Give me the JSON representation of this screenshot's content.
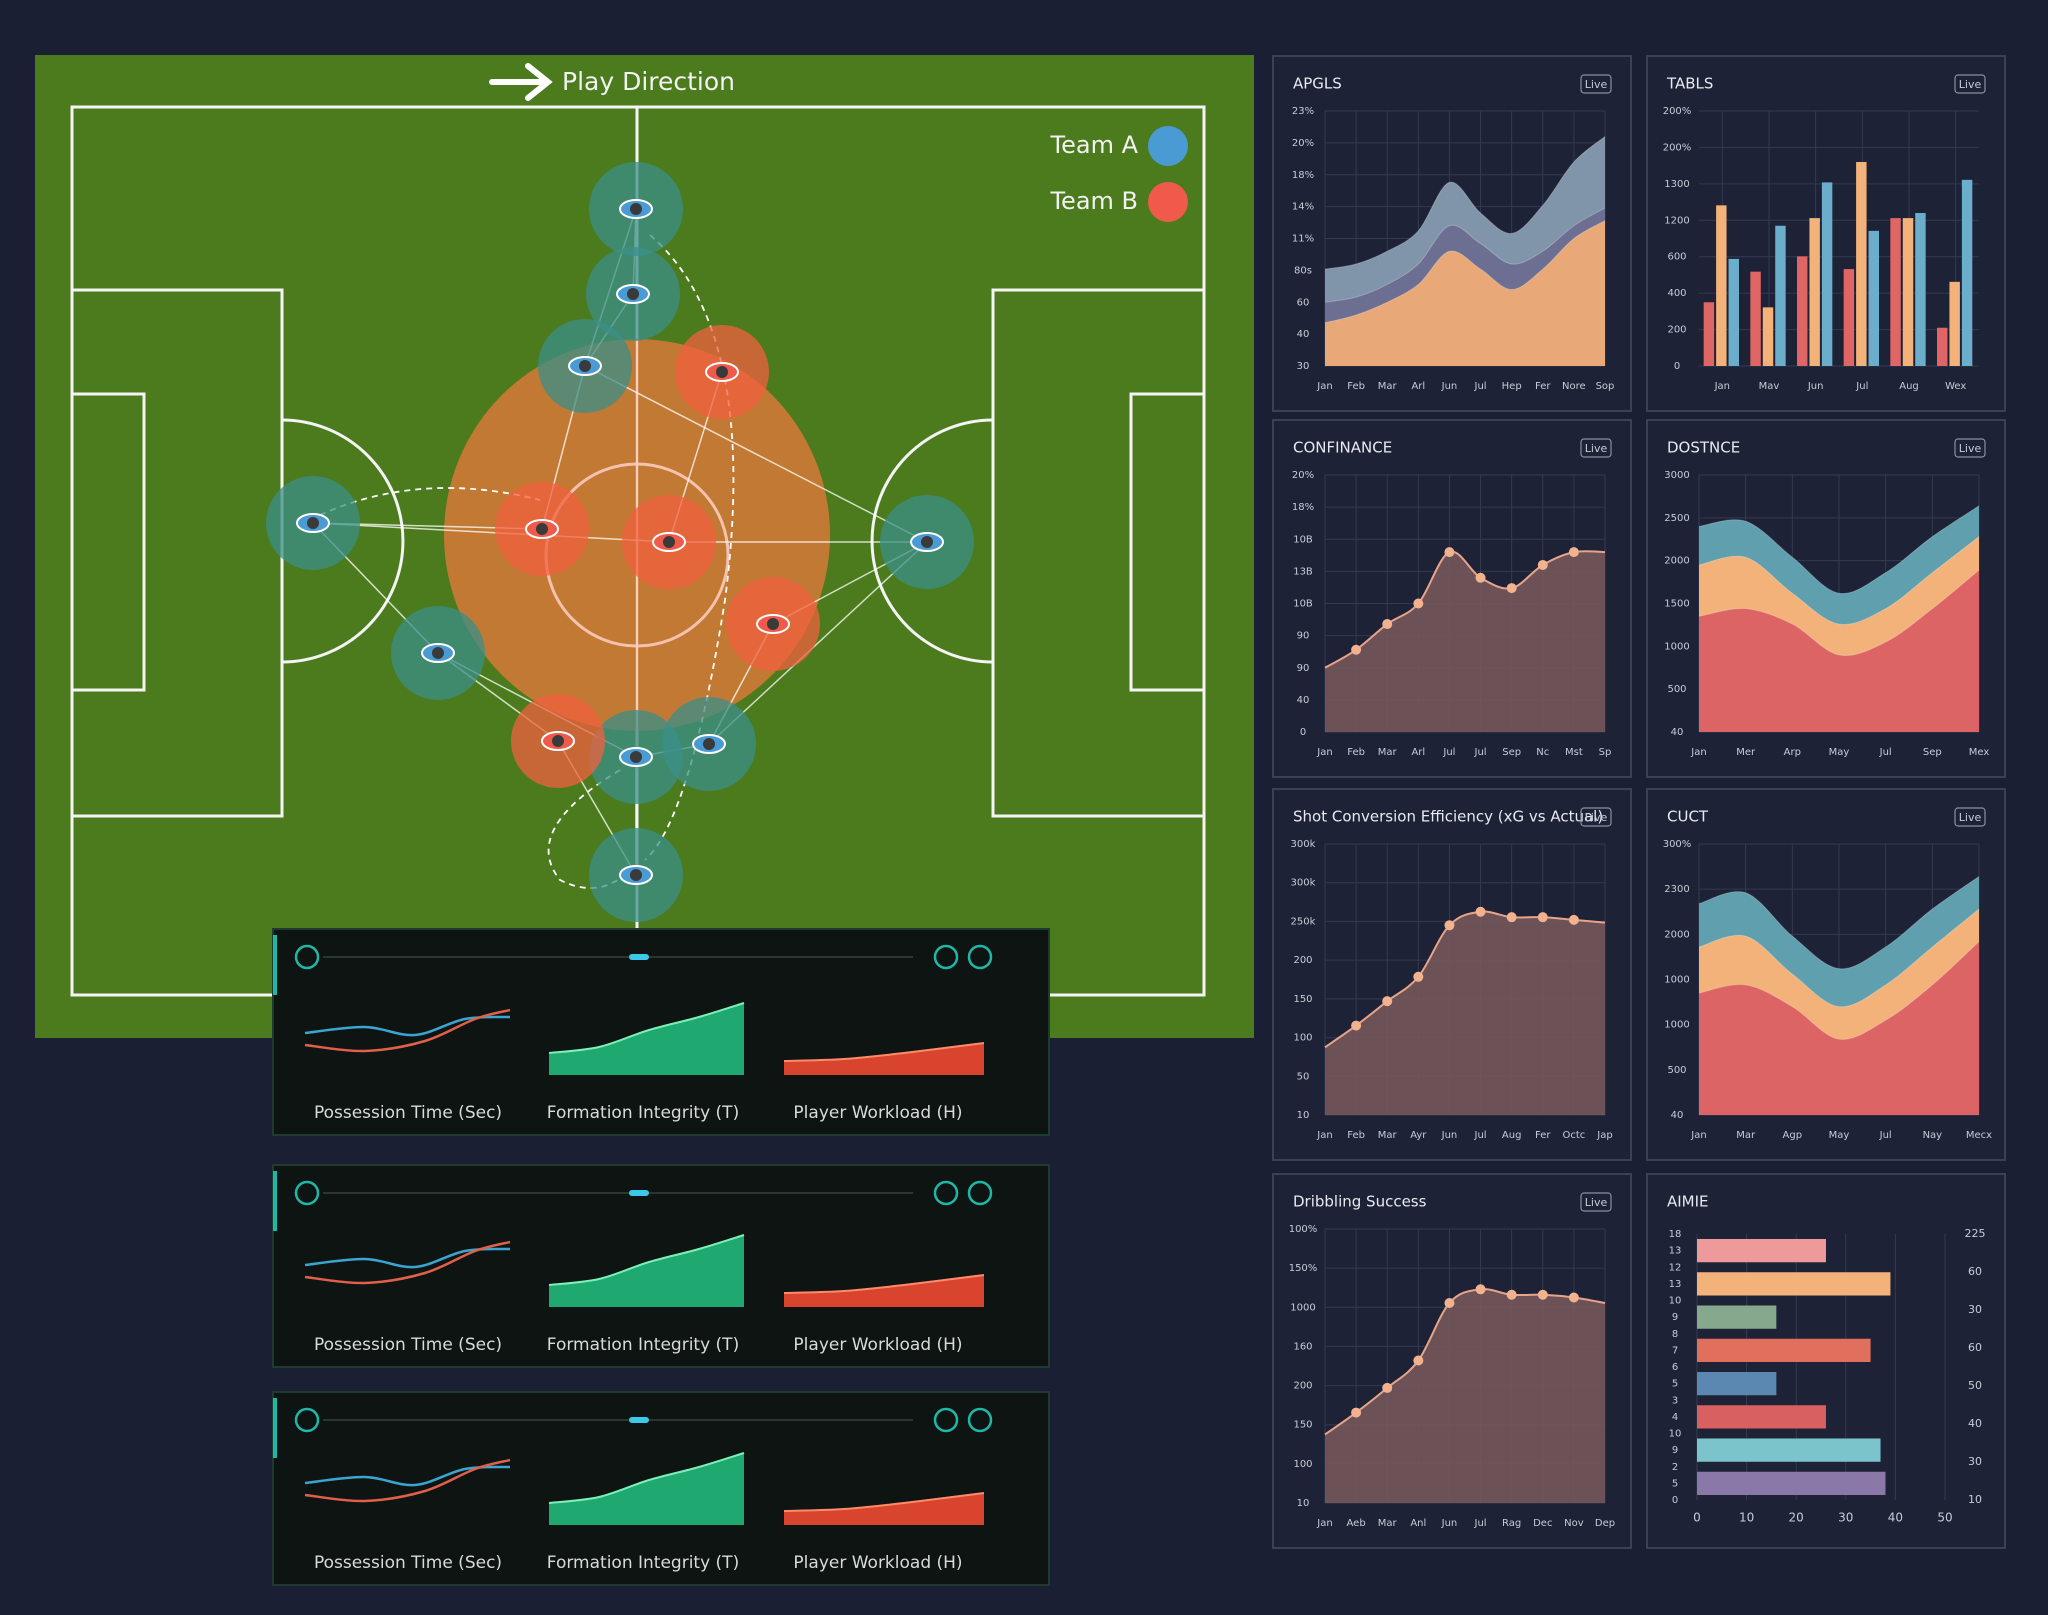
{
  "pitch": {
    "direction": "Play Direction",
    "teams": [
      {
        "name": "Team A",
        "color": "#4a9ad4"
      },
      {
        "name": "Team B",
        "color": "#f05a4a"
      }
    ]
  },
  "strips": [
    {
      "labels": [
        "Possession Time (Sec)",
        "Formation Integrity (T)",
        "Player Workload (H)"
      ]
    },
    {
      "labels": [
        "Possession Time (Sec)",
        "Formation Integrity (T)",
        "Player Workload (H)"
      ]
    },
    {
      "labels": [
        "Possession Time (Sec)",
        "Formation Integrity (T)",
        "Player Workload (H)"
      ]
    }
  ],
  "panels": [
    {
      "type": "area",
      "title": "APGLS",
      "badge": "Live",
      "categories": [
        "Jan",
        "Feb",
        "Mar",
        "Arl",
        "Jun",
        "Jul",
        "Hep",
        "Fer",
        "Nore",
        "Sop"
      ],
      "ylim": [
        0,
        100
      ],
      "ylabels": [
        "30",
        "40",
        "60",
        "80s",
        "11%",
        "14%",
        "18%",
        "20%",
        "23%"
      ],
      "series": [
        {
          "color": "#8095aa",
          "values": [
            38,
            40,
            45,
            53,
            72,
            60,
            52,
            63,
            80,
            90
          ]
        },
        {
          "color": "#6c6f91",
          "values": [
            25,
            27,
            32,
            40,
            55,
            48,
            40,
            45,
            55,
            62
          ]
        },
        {
          "color": "#e8a877",
          "values": [
            17,
            20,
            25,
            32,
            45,
            38,
            30,
            38,
            50,
            57
          ]
        }
      ]
    },
    {
      "type": "bar",
      "title": "TABLS",
      "badge": "Live",
      "categories": [
        "Jan",
        "Mav",
        "Jun",
        "Jul",
        "Aug",
        "Wex"
      ],
      "ylim": [
        0,
        100
      ],
      "ylabels": [
        "0",
        "200",
        "400",
        "600",
        "1200",
        "1300",
        "200%",
        "200%"
      ],
      "series": [
        {
          "color": "#e06565",
          "values": [
            25,
            37,
            43,
            38,
            58,
            15
          ]
        },
        {
          "color": "#f2b27a",
          "values": [
            63,
            23,
            58,
            80,
            58,
            33
          ]
        },
        {
          "color": "#6aaecb",
          "values": [
            42,
            55,
            72,
            53,
            60,
            73
          ]
        }
      ]
    },
    {
      "type": "line",
      "title": "CONFINANCE",
      "badge": "Live",
      "categories": [
        "Jan",
        "Feb",
        "Mar",
        "Arl",
        "Jul",
        "Jul",
        "Sep",
        "Nc",
        "Mst",
        "Sp"
      ],
      "ylim": [
        0,
        100
      ],
      "ylabels": [
        "0",
        "40",
        "90",
        "90",
        "10B",
        "13B",
        "10B",
        "18%",
        "20%"
      ],
      "series": [
        {
          "color": "#e8a48a",
          "values": [
            25,
            32,
            42,
            50,
            70,
            60,
            56,
            65,
            70,
            70
          ]
        }
      ]
    },
    {
      "type": "area",
      "title": "DOSTNCE",
      "badge": "Live",
      "categories": [
        "Jan",
        "Mer",
        "Arp",
        "May",
        "Jul",
        "Sep",
        "Mex"
      ],
      "ylim": [
        0,
        100
      ],
      "ylabels": [
        "40",
        "500",
        "1000",
        "1500",
        "2000",
        "2500",
        "3000"
      ],
      "series": [
        {
          "color": "#5f9fae",
          "values": [
            80,
            82,
            68,
            54,
            62,
            76,
            88
          ]
        },
        {
          "color": "#f2b27a",
          "values": [
            65,
            68,
            54,
            42,
            48,
            62,
            76
          ]
        },
        {
          "color": "#dd6464",
          "values": [
            45,
            48,
            42,
            30,
            35,
            48,
            63
          ]
        }
      ]
    },
    {
      "type": "line",
      "title": "Shot Conversion Efficiency (xG vs Actual)",
      "badge": "Live",
      "categories": [
        "Jan",
        "Feb",
        "Mar",
        "Ayr",
        "Jun",
        "Jul",
        "Aug",
        "Fer",
        "Octc",
        "Jap"
      ],
      "ylim": [
        0,
        100
      ],
      "ylabels": [
        "10",
        "50",
        "100",
        "150",
        "200",
        "250k",
        "300k",
        "300k"
      ],
      "series": [
        {
          "color": "#e8a48a",
          "values": [
            25,
            33,
            42,
            51,
            70,
            75,
            73,
            73,
            72,
            71
          ]
        }
      ]
    },
    {
      "type": "area",
      "title": "CUCT",
      "badge": "Live",
      "categories": [
        "Jan",
        "Mar",
        "Agp",
        "May",
        "Jul",
        "Nay",
        "Mecx"
      ],
      "ylim": [
        0,
        100
      ],
      "ylabels": [
        "40",
        "500",
        "1000",
        "1000",
        "2000",
        "2300",
        "300%"
      ],
      "series": [
        {
          "color": "#5f9fae",
          "values": [
            78,
            82,
            66,
            54,
            62,
            76,
            88
          ]
        },
        {
          "color": "#f2b27a",
          "values": [
            62,
            66,
            52,
            40,
            48,
            62,
            76
          ]
        },
        {
          "color": "#dd6464",
          "values": [
            45,
            48,
            40,
            28,
            35,
            48,
            64
          ]
        }
      ]
    },
    {
      "type": "line",
      "title": "Dribbling Success",
      "badge": "Live",
      "categories": [
        "Jan",
        "Aeb",
        "Mar",
        "Anl",
        "Jun",
        "Jul",
        "Rag",
        "Dec",
        "Nov",
        "Dep"
      ],
      "ylim": [
        0,
        100
      ],
      "ylabels": [
        "10",
        "100",
        "150",
        "200",
        "160",
        "1000",
        "150%",
        "100%"
      ],
      "series": [
        {
          "color": "#e8a48a",
          "values": [
            25,
            33,
            42,
            52,
            73,
            78,
            76,
            76,
            75,
            73
          ]
        }
      ]
    },
    {
      "type": "hbar",
      "title": "AIMIE",
      "xlim": [
        0,
        50
      ],
      "xticks": [
        0,
        10,
        20,
        30,
        40,
        50
      ],
      "leftlabels": [
        "18",
        "13",
        "12",
        "13",
        "10",
        "9",
        "8",
        "7",
        "6",
        "5",
        "3",
        "4",
        "10",
        "9",
        "2",
        "5",
        "0"
      ],
      "rightlabels": [
        "225",
        "60",
        "30",
        "60",
        "50",
        "40",
        "30",
        "10"
      ],
      "bars": [
        {
          "color": "#ee9a9a",
          "value": 26
        },
        {
          "color": "#f2b27a",
          "value": 39
        },
        {
          "color": "#86a88c",
          "value": 16
        },
        {
          "color": "#e06f5e",
          "value": 35
        },
        {
          "color": "#5a88b0",
          "value": 16
        },
        {
          "color": "#d86060",
          "value": 26
        },
        {
          "color": "#7cc4cc",
          "value": 37
        },
        {
          "color": "#8a78a8",
          "value": 38
        }
      ]
    }
  ]
}
